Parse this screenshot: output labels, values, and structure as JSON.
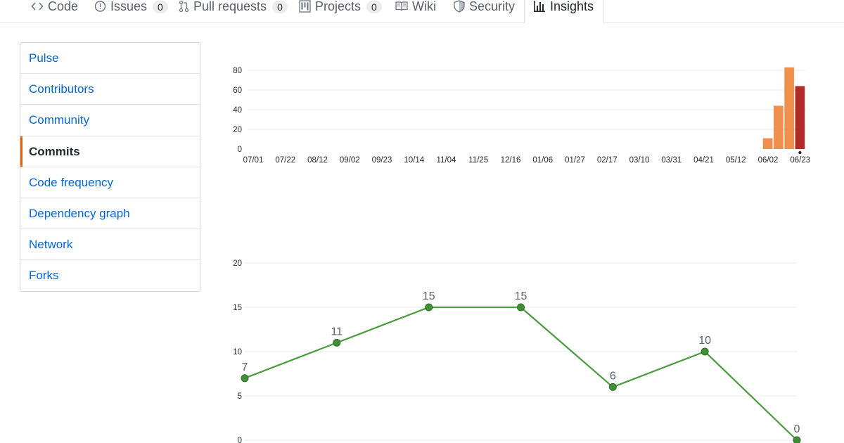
{
  "repo_nav": {
    "tabs": [
      {
        "name": "tab-code",
        "icon": "code-icon",
        "label": "Code",
        "count": null
      },
      {
        "name": "tab-issues",
        "icon": "issue-opened-icon",
        "label": "Issues",
        "count": "0"
      },
      {
        "name": "tab-pull-requests",
        "icon": "git-pull-request-icon",
        "label": "Pull requests",
        "count": "0"
      },
      {
        "name": "tab-projects",
        "icon": "project-icon",
        "label": "Projects",
        "count": "0"
      },
      {
        "name": "tab-wiki",
        "icon": "book-icon",
        "label": "Wiki",
        "count": null
      },
      {
        "name": "tab-security",
        "icon": "shield-icon",
        "label": "Security",
        "count": null
      },
      {
        "name": "tab-insights",
        "icon": "graph-icon",
        "label": "Insights",
        "count": null,
        "selected": true
      }
    ]
  },
  "sidebar": {
    "items": [
      {
        "label": "Pulse"
      },
      {
        "label": "Contributors"
      },
      {
        "label": "Community"
      },
      {
        "label": "Commits",
        "selected": true
      },
      {
        "label": "Code frequency"
      },
      {
        "label": "Dependency graph"
      },
      {
        "label": "Network"
      },
      {
        "label": "Forks"
      }
    ]
  },
  "colors": {
    "accent_orange": "#e36209",
    "bar_orange": "#ef8f4b",
    "bar_selected": "#b22b2b",
    "line_green": "#4a9a3e",
    "point_green": "#3f8f36",
    "link_blue": "#0366d6"
  },
  "chart_data": [
    {
      "type": "bar",
      "ylim": [
        0,
        80
      ],
      "yticks": [
        0,
        20,
        40,
        60,
        80
      ],
      "grid": true,
      "tick_labels": [
        "07/01",
        "07/22",
        "08/12",
        "09/02",
        "09/23",
        "10/14",
        "11/04",
        "11/25",
        "12/16",
        "01/06",
        "01/27",
        "02/17",
        "03/10",
        "03/31",
        "04/21",
        "05/12",
        "06/02",
        "06/23"
      ],
      "weeks": 52,
      "nonzero_bars": [
        {
          "week_index": 48,
          "value": 11
        },
        {
          "week_index": 49,
          "value": 44
        },
        {
          "week_index": 50,
          "value": 83
        },
        {
          "week_index": 51,
          "value": 64,
          "selected": true
        }
      ]
    },
    {
      "type": "line",
      "ylim": [
        0,
        20
      ],
      "yticks": [
        0,
        5,
        10,
        15,
        20
      ],
      "grid": true,
      "values": [
        7,
        11,
        15,
        15,
        6,
        10,
        0
      ],
      "data_labels": [
        "7",
        "11",
        "15",
        "15",
        "6",
        "10",
        "0"
      ]
    }
  ]
}
